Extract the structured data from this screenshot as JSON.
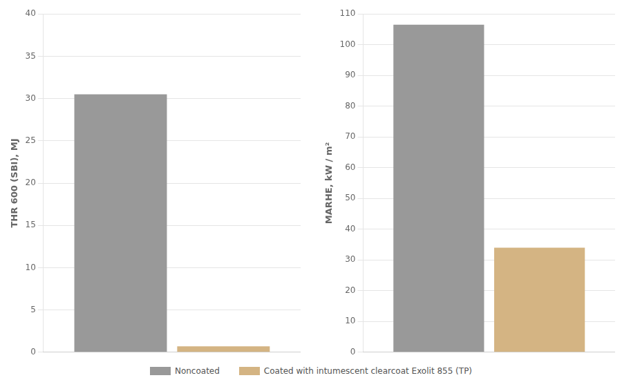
{
  "chart_data": [
    {
      "type": "bar",
      "y_label": "THR 600 (SBI), MJ",
      "categories": [
        null
      ],
      "series": [
        {
          "name": "Noncoated",
          "color": "#999999",
          "values": [
            30.5
          ]
        },
        {
          "name": "Coated with intumescent clearcoat Exolit 855 (TP)",
          "color": "#D4B483",
          "values": [
            0.7
          ]
        }
      ],
      "ylim": [
        0,
        40
      ],
      "yticks": [
        0,
        5,
        10,
        15,
        20,
        25,
        30,
        35,
        40
      ],
      "grid": true,
      "tick_labels": "y",
      "legend": "bottom"
    },
    {
      "type": "bar",
      "y_label": "MARHE, kW / m²",
      "categories": [
        null
      ],
      "series": [
        {
          "name": "Noncoated",
          "color": "#999999",
          "values": [
            106.5
          ]
        },
        {
          "name": "Coated with intumescent clearcoat Exolit 855 (TP)",
          "color": "#D4B483",
          "values": [
            34.0
          ]
        }
      ],
      "ylim": [
        0,
        110
      ],
      "yticks": [
        0,
        10,
        20,
        30,
        40,
        50,
        60,
        70,
        80,
        90,
        100,
        110
      ],
      "grid": true,
      "tick_labels": "y",
      "legend": "bottom"
    }
  ]
}
